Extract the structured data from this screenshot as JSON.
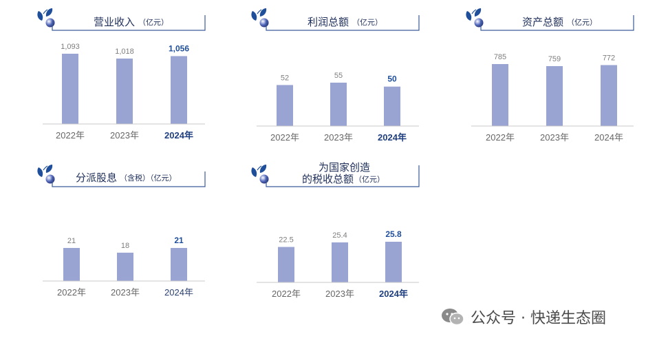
{
  "chart_data": [
    {
      "type": "bar",
      "title": "营业收入",
      "title_unit": "（亿元）",
      "categories": [
        "2022年",
        "2023年",
        "2024年"
      ],
      "values": [
        1093,
        1018,
        1056
      ],
      "value_labels": [
        "1,093",
        "1,018",
        "1,056"
      ],
      "highlight_index": 2,
      "ylim": [
        0,
        1093
      ]
    },
    {
      "type": "bar",
      "title": "利润总额",
      "title_unit": "（亿元）",
      "categories": [
        "2022年",
        "2023年",
        "2024年"
      ],
      "values": [
        52,
        55,
        50
      ],
      "value_labels": [
        "52",
        "55",
        "50"
      ],
      "highlight_index": 2,
      "ylim": [
        0,
        55
      ]
    },
    {
      "type": "bar",
      "title": "资产总额",
      "title_unit": "（亿元）",
      "categories": [
        "2022年",
        "2023年",
        "2024年"
      ],
      "values": [
        785,
        759,
        772
      ],
      "value_labels": [
        "785",
        "759",
        "772"
      ],
      "highlight_index": -1,
      "ylim": [
        0,
        785
      ]
    },
    {
      "type": "bar",
      "title": "分派股息",
      "title_unit": "（含税）（亿元）",
      "categories": [
        "2022年",
        "2023年",
        "2024年"
      ],
      "values": [
        21,
        18,
        21
      ],
      "value_labels": [
        "21",
        "18",
        "21"
      ],
      "highlight_index": 2,
      "soft_highlight": true,
      "ylim": [
        0,
        21
      ]
    },
    {
      "type": "bar",
      "title_line1": "为国家创造",
      "title_line2": "的税收总额",
      "title_unit": "（亿元）",
      "categories": [
        "2022年",
        "2023年",
        "2024年"
      ],
      "values": [
        22.5,
        25.4,
        25.8
      ],
      "value_labels": [
        "22.5",
        "25.4",
        "25.8"
      ],
      "highlight_index": 2,
      "ylim": [
        0,
        25.8
      ]
    }
  ],
  "watermark": {
    "text": "公众号 · 快递生态圈",
    "icon": "wechat-icon"
  },
  "colors": {
    "bar": "#9aa4d3",
    "highlight_text": "#1f4e9a",
    "frame": "#3a5a9a",
    "leaf": "#1f4e9a",
    "ball": "#5a6fc0"
  }
}
